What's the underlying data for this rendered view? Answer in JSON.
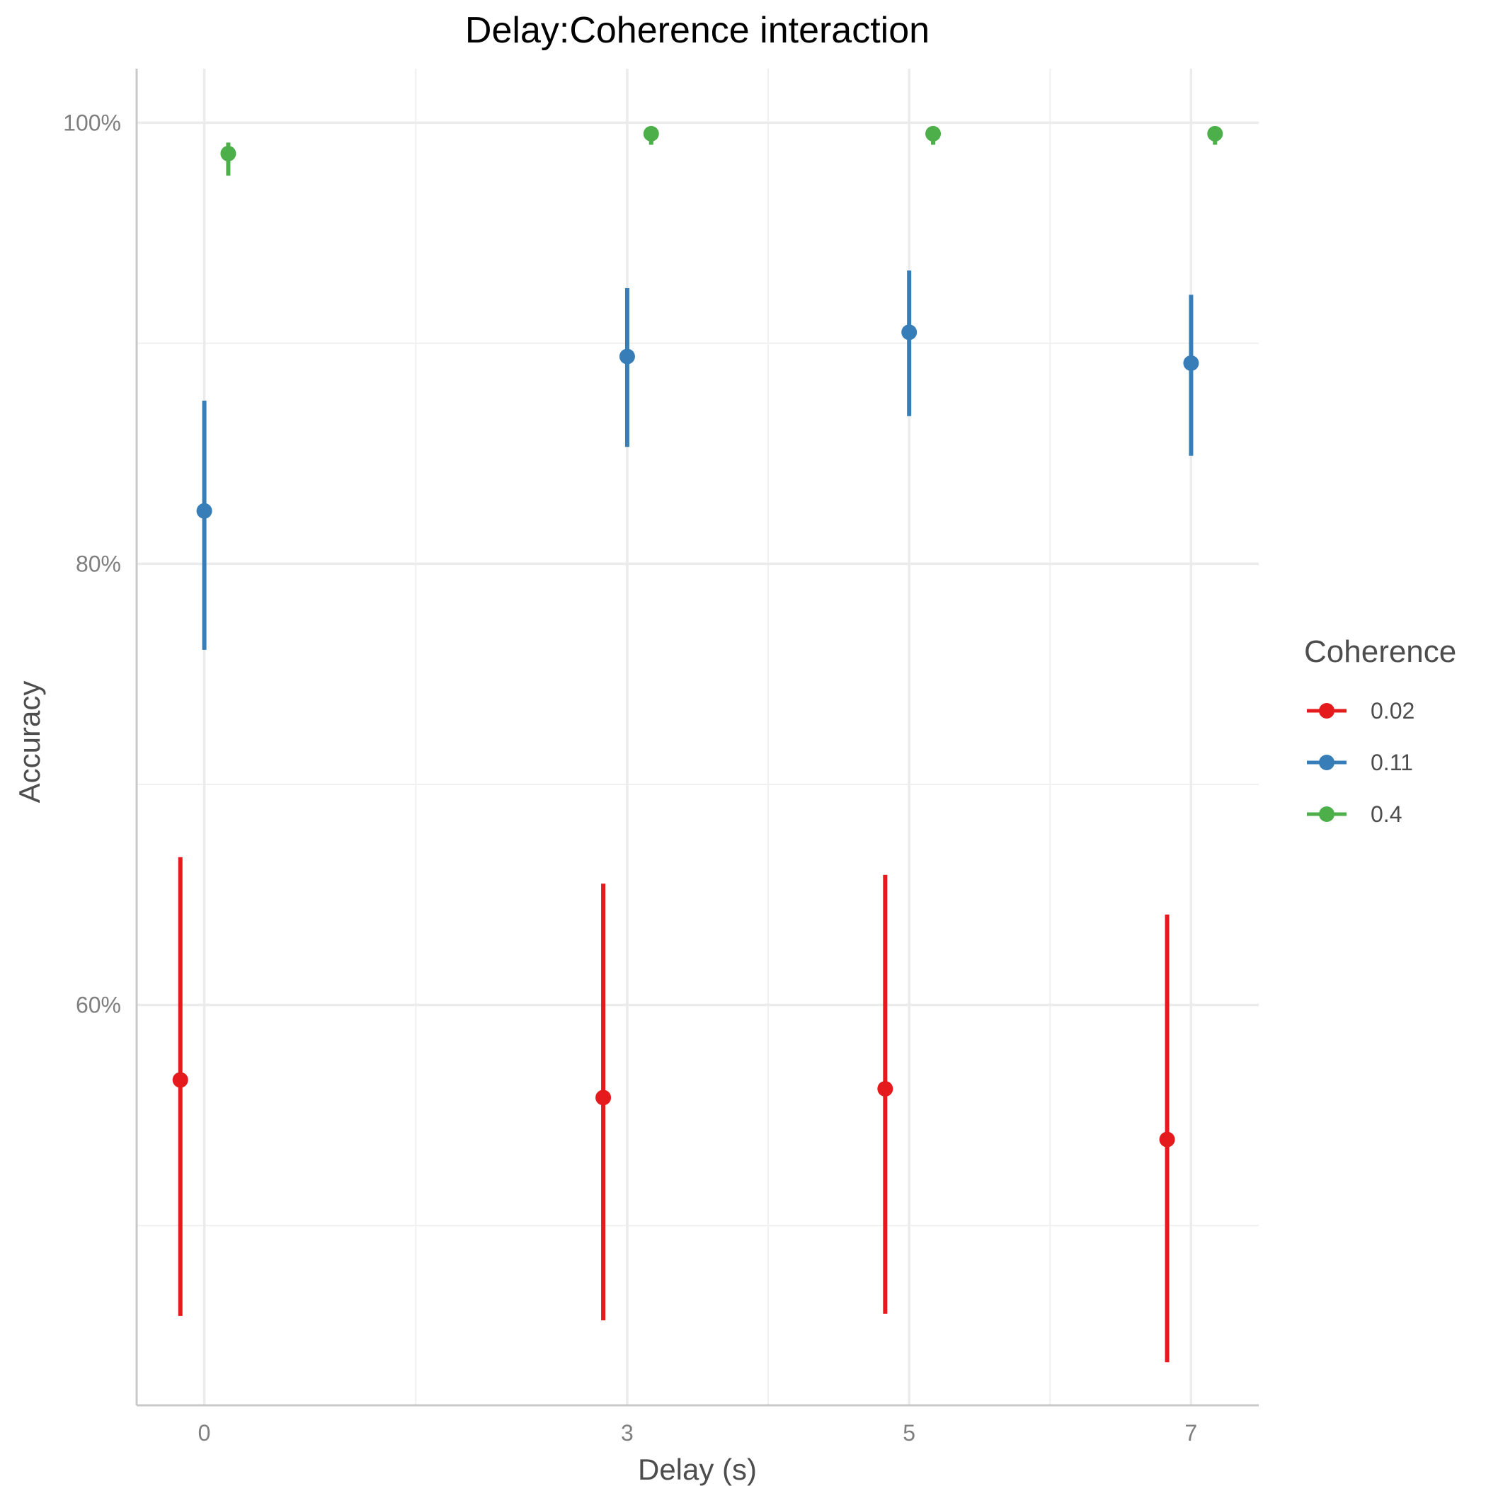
{
  "chart_data": {
    "type": "scatter",
    "title": "Delay:Coherence interaction",
    "xlabel": "Delay (s)",
    "ylabel": "Accuracy",
    "x_ticks": [
      0,
      3,
      5,
      7
    ],
    "x_tick_labels": [
      "0",
      "3",
      "5",
      "7"
    ],
    "y_ticks": [
      0.6,
      0.8,
      1.0
    ],
    "y_tick_labels": [
      "60%",
      "80%",
      "100%"
    ],
    "xlim": [
      -0.48,
      7.48
    ],
    "ylim": [
      0.4185,
      1.0245
    ],
    "grid": true,
    "legend": {
      "title": "Coherence",
      "position": "right"
    },
    "series": [
      {
        "name": "0.02",
        "color": "#E41A1C",
        "points": [
          {
            "x": 0,
            "y": 0.566,
            "lower": 0.459,
            "upper": 0.667
          },
          {
            "x": 3,
            "y": 0.558,
            "lower": 0.457,
            "upper": 0.655
          },
          {
            "x": 5,
            "y": 0.562,
            "lower": 0.46,
            "upper": 0.659
          },
          {
            "x": 7,
            "y": 0.539,
            "lower": 0.438,
            "upper": 0.641
          }
        ]
      },
      {
        "name": "0.11",
        "color": "#377EB8",
        "points": [
          {
            "x": 0,
            "y": 0.824,
            "lower": 0.761,
            "upper": 0.874
          },
          {
            "x": 3,
            "y": 0.894,
            "lower": 0.853,
            "upper": 0.925
          },
          {
            "x": 5,
            "y": 0.905,
            "lower": 0.867,
            "upper": 0.933
          },
          {
            "x": 7,
            "y": 0.891,
            "lower": 0.849,
            "upper": 0.922
          }
        ]
      },
      {
        "name": "0.4",
        "color": "#4DAF4A",
        "points": [
          {
            "x": 0,
            "y": 0.986,
            "lower": 0.976,
            "upper": 0.991
          },
          {
            "x": 3,
            "y": 0.995,
            "lower": 0.99,
            "upper": 0.997
          },
          {
            "x": 5,
            "y": 0.995,
            "lower": 0.99,
            "upper": 0.997
          },
          {
            "x": 7,
            "y": 0.995,
            "lower": 0.99,
            "upper": 0.997
          }
        ]
      }
    ]
  }
}
